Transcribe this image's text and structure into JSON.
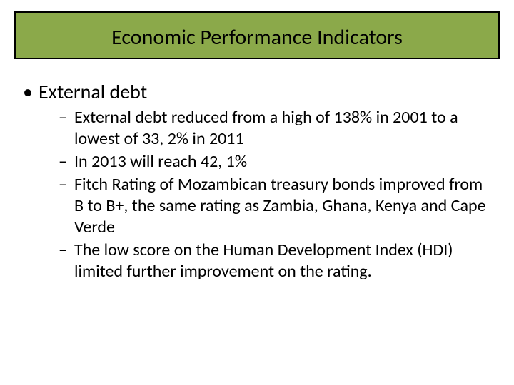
{
  "colors": {
    "title_bg": "#8ba94a",
    "title_border": "#000000",
    "slide_bg": "#ffffff",
    "text": "#000000"
  },
  "fonts": {
    "family": "Calibri",
    "title_size_pt": 30,
    "level1_size_pt": 28,
    "level2_size_pt": 24
  },
  "title": "Economic Performance Indicators",
  "body": {
    "level1": [
      {
        "text": "External debt",
        "level2": [
          " External debt reduced from a high of  138% in 2001 to a lowest of 33, 2% in 2011",
          "In 2013 will reach 42, 1%",
          "Fitch Rating of Mozambican treasury bonds improved from B to B+,  the same rating as Zambia, Ghana, Kenya and Cape Verde",
          "The low score on the Human Development Index (HDI) limited further improvement on the rating."
        ]
      }
    ]
  }
}
